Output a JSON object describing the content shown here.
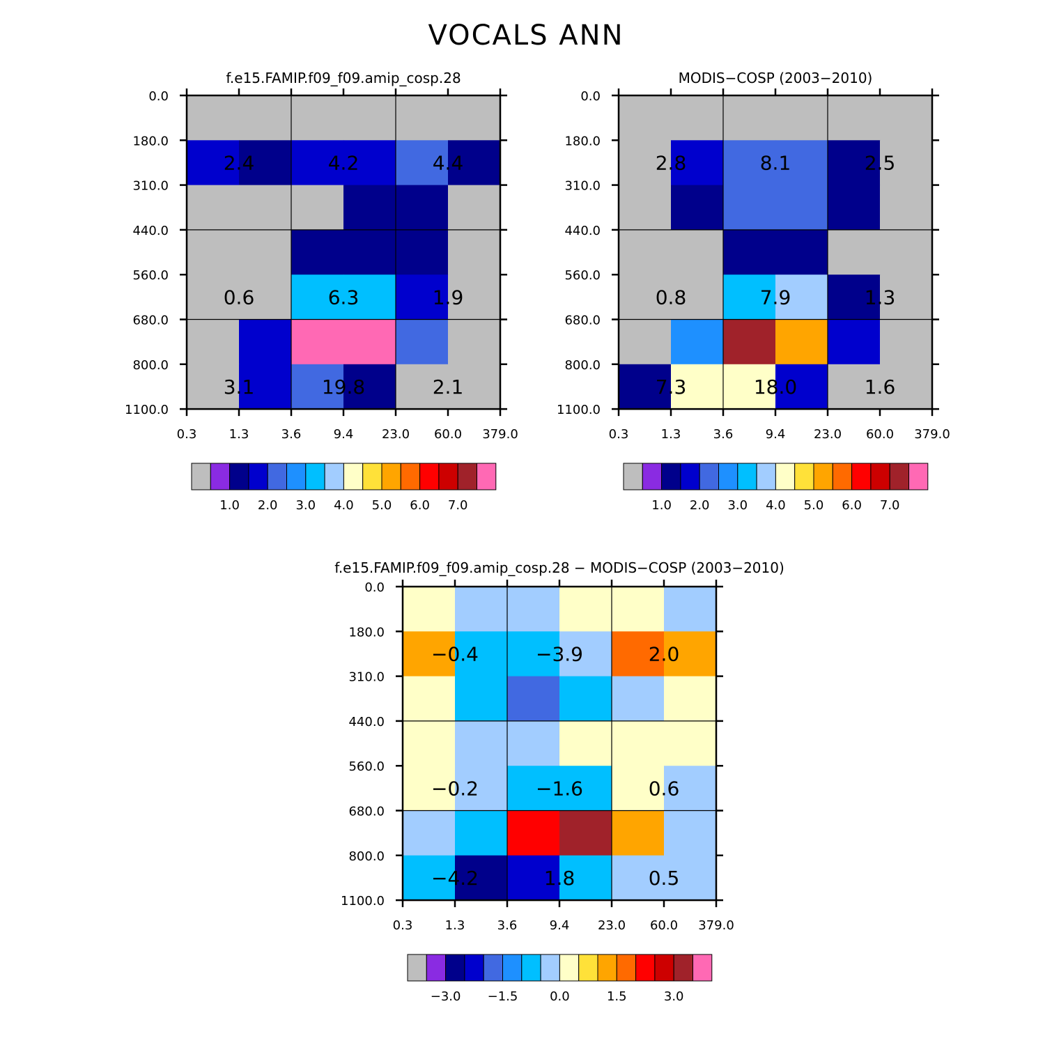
{
  "suptitle": "VOCALS ANN",
  "chart_data": [
    {
      "type": "heatmap",
      "title": "f.e15.FAMIP.f09_f09.amip_cosp.28",
      "x_ticks": [
        "0.3",
        "1.3",
        "3.6",
        "9.4",
        "23.0",
        "60.0",
        "379.0"
      ],
      "y_ticks": [
        "0.0",
        "180.0",
        "310.0",
        "440.0",
        "560.0",
        "680.0",
        "800.0",
        "1100.0"
      ],
      "cells": [
        [
          0.0,
          0.0,
          0.0,
          0.0,
          0.0,
          0.0
        ],
        [
          1.9,
          1.0,
          1.9,
          1.9,
          2.4,
          1.0
        ],
        [
          0.0,
          0.0,
          0.0,
          1.0,
          1.0,
          0.0
        ],
        [
          0.0,
          0.0,
          1.0,
          1.0,
          1.0,
          0.0
        ],
        [
          0.0,
          0.0,
          3.0,
          3.4,
          1.9,
          0.0
        ],
        [
          0.0,
          1.9,
          8.0,
          8.0,
          2.4,
          0.0
        ],
        [
          0.0,
          1.9,
          2.4,
          1.0,
          0.0,
          0.0
        ]
      ],
      "block_labels": [
        {
          "text": "2.4",
          "row": 1,
          "col": 0
        },
        {
          "text": "4.2",
          "row": 1,
          "col": 1
        },
        {
          "text": "4.4",
          "row": 1,
          "col": 2
        },
        {
          "text": "0.6",
          "row": 4,
          "col": 0
        },
        {
          "text": "6.3",
          "row": 4,
          "col": 1
        },
        {
          "text": "1.9",
          "row": 4,
          "col": 2
        },
        {
          "text": "3.1",
          "row": 6,
          "col": 0
        },
        {
          "text": "19.8",
          "row": 6,
          "col": 1
        },
        {
          "text": "2.1",
          "row": 6,
          "col": 2
        }
      ],
      "colorbar": {
        "colors": [
          "#bebebe",
          "#8a2be2",
          "#00008b",
          "#0000cd",
          "#4169e1",
          "#1e90ff",
          "#00bfff",
          "#a2cdff",
          "#ffffc8",
          "#ffe139",
          "#ffa500",
          "#ff6a00",
          "#ff0000",
          "#cd0000",
          "#a0222a",
          "#ff69b4"
        ],
        "labels": [
          "1.0",
          "2.0",
          "3.0",
          "4.0",
          "5.0",
          "6.0",
          "7.0"
        ],
        "levels": [
          0.5,
          1.0,
          1.5,
          2.0,
          2.5,
          3.0,
          3.5,
          4.0,
          4.5,
          5.0,
          5.5,
          6.0,
          6.5,
          7.0,
          7.5
        ]
      }
    },
    {
      "type": "heatmap",
      "title": "MODIS-COSP (2003-2010)",
      "x_ticks": [
        "0.3",
        "1.3",
        "3.6",
        "9.4",
        "23.0",
        "60.0",
        "379.0"
      ],
      "y_ticks": [
        "0.0",
        "180.0",
        "310.0",
        "440.0",
        "560.0",
        "680.0",
        "800.0",
        "1100.0"
      ],
      "cells": [
        [
          0.0,
          0.0,
          0.0,
          0.0,
          0.0,
          0.0
        ],
        [
          0.0,
          1.9,
          2.4,
          2.4,
          1.0,
          0.0
        ],
        [
          0.0,
          1.0,
          2.4,
          2.4,
          1.0,
          0.0
        ],
        [
          0.0,
          0.0,
          1.0,
          1.0,
          0.0,
          0.0
        ],
        [
          0.0,
          0.0,
          3.4,
          3.9,
          1.0,
          0.0
        ],
        [
          0.0,
          2.9,
          7.4,
          5.4,
          1.9,
          0.0
        ],
        [
          1.0,
          4.4,
          4.0,
          1.9,
          0.0,
          0.0
        ]
      ],
      "block_labels": [
        {
          "text": "2.8",
          "row": 1,
          "col": 0
        },
        {
          "text": "8.1",
          "row": 1,
          "col": 1
        },
        {
          "text": "2.5",
          "row": 1,
          "col": 2
        },
        {
          "text": "0.8",
          "row": 4,
          "col": 0
        },
        {
          "text": "7.9",
          "row": 4,
          "col": 1
        },
        {
          "text": "1.3",
          "row": 4,
          "col": 2
        },
        {
          "text": "7.3",
          "row": 6,
          "col": 0
        },
        {
          "text": "18.0",
          "row": 6,
          "col": 1
        },
        {
          "text": "1.6",
          "row": 6,
          "col": 2
        }
      ],
      "colorbar": {
        "colors": [
          "#bebebe",
          "#8a2be2",
          "#00008b",
          "#0000cd",
          "#4169e1",
          "#1e90ff",
          "#00bfff",
          "#a2cdff",
          "#ffffc8",
          "#ffe139",
          "#ffa500",
          "#ff6a00",
          "#ff0000",
          "#cd0000",
          "#a0222a",
          "#ff69b4"
        ],
        "labels": [
          "1.0",
          "2.0",
          "3.0",
          "4.0",
          "5.0",
          "6.0",
          "7.0"
        ],
        "levels": [
          0.5,
          1.0,
          1.5,
          2.0,
          2.5,
          3.0,
          3.5,
          4.0,
          4.5,
          5.0,
          5.5,
          6.0,
          6.5,
          7.0,
          7.5
        ]
      }
    },
    {
      "type": "heatmap",
      "title": "f.e15.FAMIP.f09_f09.amip_cosp.28 - MODIS-COSP (2003-2010)",
      "x_ticks": [
        "0.3",
        "1.3",
        "3.6",
        "9.4",
        "23.0",
        "60.0",
        "379.0"
      ],
      "y_ticks": [
        "0.0",
        "180.0",
        "310.0",
        "440.0",
        "560.0",
        "680.0",
        "800.0",
        "1100.0"
      ],
      "cells": [
        [
          0.25,
          -0.25,
          -0.25,
          0.25,
          0.25,
          -0.25
        ],
        [
          1.0,
          -1.0,
          -1.0,
          -0.25,
          1.5,
          1.0
        ],
        [
          0.25,
          -1.0,
          -1.75,
          -1.0,
          -0.25,
          0.25
        ],
        [
          0.25,
          -0.25,
          -0.25,
          0.25,
          0.25,
          0.25
        ],
        [
          0.25,
          -0.25,
          -1.0,
          -1.0,
          0.25,
          -0.25
        ],
        [
          -0.25,
          -1.0,
          2.25,
          3.25,
          1.0,
          -0.25
        ],
        [
          -1.0,
          -2.75,
          -2.25,
          -1.0,
          -0.25,
          -0.25
        ]
      ],
      "block_labels": [
        {
          "text": "-0.4",
          "row": 1,
          "col": 0
        },
        {
          "text": "-3.9",
          "row": 1,
          "col": 1
        },
        {
          "text": "2.0",
          "row": 1,
          "col": 2
        },
        {
          "text": "-0.2",
          "row": 4,
          "col": 0
        },
        {
          "text": "-1.6",
          "row": 4,
          "col": 1
        },
        {
          "text": "0.6",
          "row": 4,
          "col": 2
        },
        {
          "text": "-4.2",
          "row": 6,
          "col": 0
        },
        {
          "text": "1.8",
          "row": 6,
          "col": 1
        },
        {
          "text": "0.5",
          "row": 6,
          "col": 2
        }
      ],
      "colorbar": {
        "colors": [
          "#bebebe",
          "#8a2be2",
          "#00008b",
          "#0000cd",
          "#4169e1",
          "#1e90ff",
          "#00bfff",
          "#a2cdff",
          "#ffffc8",
          "#ffe139",
          "#ffa500",
          "#ff6a00",
          "#ff0000",
          "#cd0000",
          "#a0222a",
          "#ff69b4"
        ],
        "labels": [
          "-3.0",
          "-1.5",
          "0.0",
          "1.5",
          "3.0"
        ],
        "levels": [
          -3.5,
          -3.0,
          -2.5,
          -2.0,
          -1.5,
          -1.0,
          -0.5,
          0.0,
          0.5,
          1.0,
          1.5,
          2.0,
          2.5,
          3.0,
          3.5
        ]
      }
    }
  ]
}
